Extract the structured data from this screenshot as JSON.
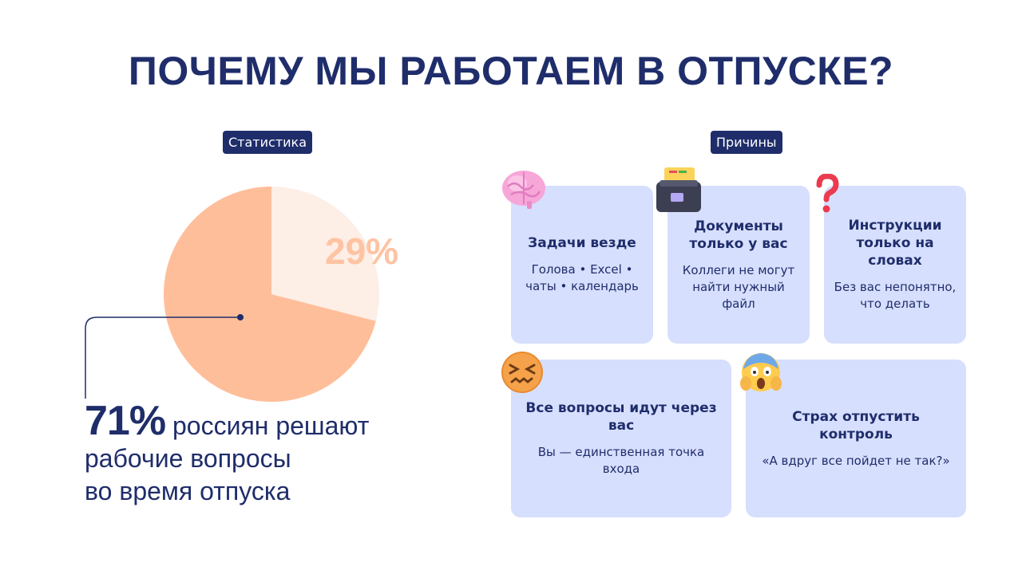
{
  "title": "ПОЧЕМУ МЫ РАБОТАЕМ В ОТПУСКЕ?",
  "stats_label": "Статистика",
  "reasons_label": "Причины",
  "chart_data": {
    "type": "pie",
    "slices": [
      {
        "label": "71%",
        "value": 71,
        "color": "#ffbe9a"
      },
      {
        "label": "29%",
        "value": 29,
        "color": "#fdeee6"
      }
    ],
    "label_color": "#ffc3a2"
  },
  "stat": {
    "big": "71%",
    "line1": "россиян решают",
    "line2": "рабочие вопросы",
    "line3": "во время отпуска"
  },
  "cards": [
    {
      "icon": "brain-icon",
      "title": "Задачи везде",
      "text": "Голова • Excel • чаты • календарь"
    },
    {
      "icon": "file-box-icon",
      "title": "Документы только у вас",
      "text": "Коллеги не могут найти нужный файл"
    },
    {
      "icon": "question-mark-icon",
      "title": "Инструкции только на словах",
      "text": "Без вас непонятно, что делать"
    },
    {
      "icon": "confounded-face-icon",
      "title": "Все вопросы идут через вас",
      "text": "Вы — единственная точка входа"
    },
    {
      "icon": "screaming-face-icon",
      "title": "Страх отпустить контроль",
      "text": "«А вдруг все пойдет не так?»"
    }
  ],
  "colors": {
    "navy": "#1f2d6b",
    "card_bg": "#d7dffe",
    "pie_main": "#ffbe9a",
    "pie_light": "#fdeee6"
  }
}
